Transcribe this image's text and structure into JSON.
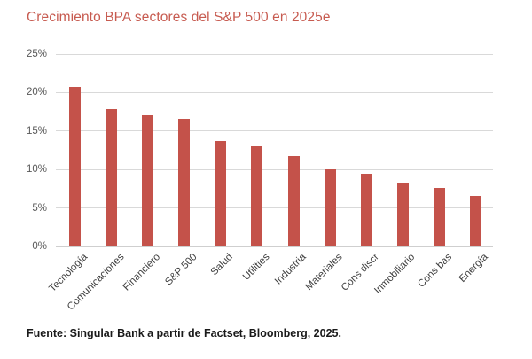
{
  "title": "Crecimiento BPA sectores del S&P 500 en 2025e",
  "footer": "Fuente: Singular Bank a partir de Factset, Bloomberg, 2025.",
  "colors": {
    "bar": "#C4524A",
    "title": "#C75B50",
    "gridline": "#D9D9D9",
    "y_tick_text": "#595959",
    "x_label_text": "#404040",
    "footer_text": "#1a1a1a"
  },
  "chart_data": {
    "type": "bar",
    "title": "Crecimiento BPA sectores del S&P 500 en 2025e",
    "categories": [
      "Tecnología",
      "Comunicaciones",
      "Financiero",
      "S&P 500",
      "Salud",
      "Utilities",
      "Industria",
      "Materiales",
      "Cons discr",
      "Inmobiliario",
      "Cons bás",
      "Energía"
    ],
    "values": [
      20.7,
      17.9,
      17.0,
      16.6,
      13.7,
      13.0,
      11.8,
      10.0,
      9.5,
      8.3,
      7.6,
      6.6
    ],
    "unit": "%",
    "ylim": [
      0,
      25
    ],
    "ytick_step": 5,
    "ytick_labels": [
      "0%",
      "5%",
      "10%",
      "15%",
      "20%",
      "25%"
    ],
    "xlabel": "",
    "ylabel": "",
    "grid": true,
    "legend": "none",
    "bar_color": "#C4524A",
    "source": "Fuente: Singular Bank a partir de Factset, Bloomberg, 2025."
  }
}
